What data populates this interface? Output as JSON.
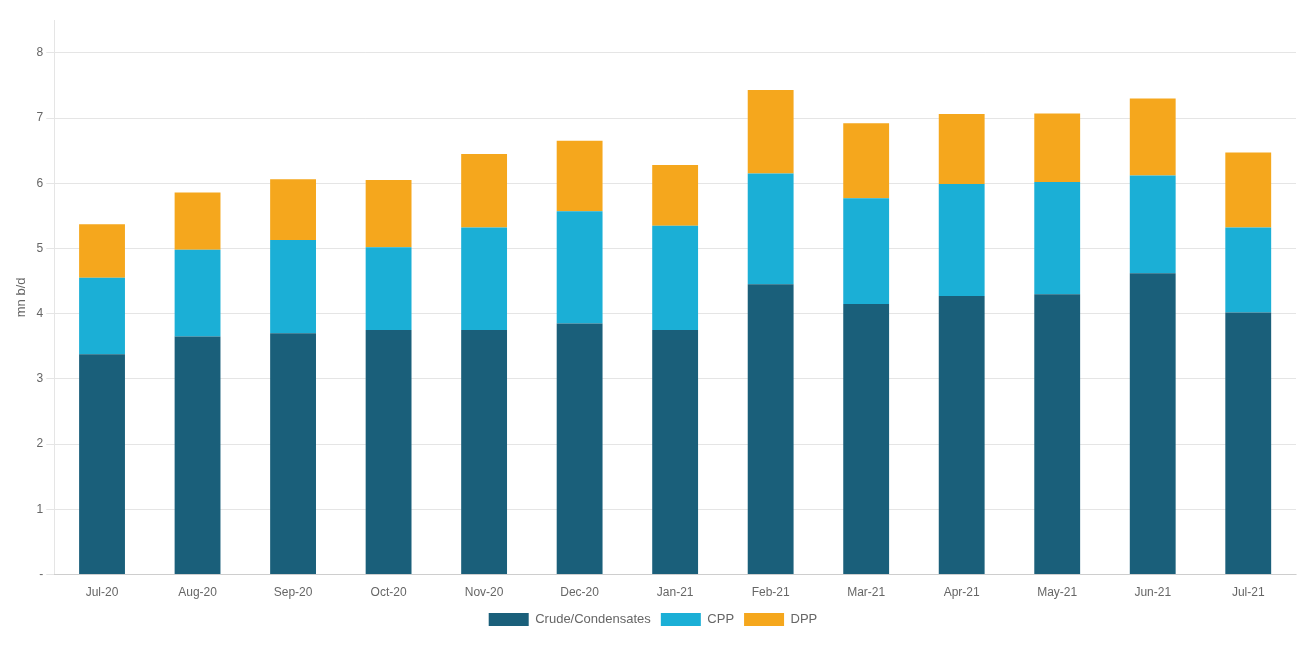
{
  "chart_data": {
    "type": "bar",
    "stacked": true,
    "categories": [
      "Jul-20",
      "Aug-20",
      "Sep-20",
      "Oct-20",
      "Nov-20",
      "Dec-20",
      "Jan-21",
      "Feb-21",
      "Mar-21",
      "Apr-21",
      "May-21",
      "Jun-21",
      "Jul-21"
    ],
    "series": [
      {
        "name": "Crude/Condensates",
        "color": "#1a5f7a",
        "values": [
          3.38,
          3.65,
          3.7,
          3.75,
          3.75,
          3.85,
          3.75,
          4.45,
          4.15,
          4.27,
          4.3,
          4.62,
          4.02
        ]
      },
      {
        "name": "CPP",
        "color": "#1bafd6",
        "values": [
          1.17,
          1.33,
          1.43,
          1.27,
          1.57,
          1.72,
          1.6,
          1.7,
          1.62,
          1.72,
          1.72,
          1.5,
          1.3
        ]
      },
      {
        "name": "DPP",
        "color": "#f5a71d",
        "values": [
          0.82,
          0.88,
          0.93,
          1.03,
          1.13,
          1.08,
          0.93,
          1.28,
          1.15,
          1.07,
          1.05,
          1.18,
          1.15
        ]
      }
    ],
    "y_label": "mn b/d",
    "ylim": [
      0,
      8.5
    ],
    "yticks": [
      {
        "value": 0,
        "label": "-"
      },
      1,
      2,
      3,
      4,
      5,
      6,
      7,
      8
    ],
    "grid": true,
    "legend": "bottom"
  }
}
